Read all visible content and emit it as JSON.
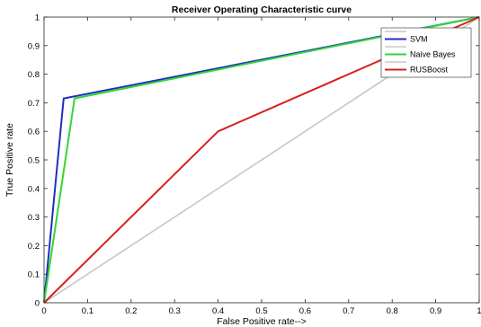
{
  "chart_data": {
    "type": "line",
    "title": "Receiver Operating Characteristic curve",
    "xlabel": "False Positive rate-->",
    "ylabel": "True Positive rate",
    "xlim": [
      0,
      1
    ],
    "ylim": [
      0,
      1
    ],
    "xticks": [
      "0",
      "0.1",
      "0.2",
      "0.3",
      "0.4",
      "0.5",
      "0.6",
      "0.7",
      "0.8",
      "0.9",
      "1"
    ],
    "yticks": [
      "0",
      "0.1",
      "0.2",
      "0.3",
      "0.4",
      "0.5",
      "0.6",
      "0.7",
      "0.8",
      "0.9",
      "1"
    ],
    "grid": false,
    "legend_position": "top-right",
    "series": [
      {
        "name": "",
        "color": "#c8c8c8",
        "x": [
          0,
          1
        ],
        "y": [
          0,
          1
        ]
      },
      {
        "name": "SVM",
        "color": "#1f2fbf",
        "x": [
          0,
          0.045,
          1
        ],
        "y": [
          0,
          0.715,
          1
        ]
      },
      {
        "name": "",
        "color": "#c8c8c8",
        "x": [
          0,
          1
        ],
        "y": [
          0,
          1
        ]
      },
      {
        "name": "Naive Bayes",
        "color": "#33d633",
        "x": [
          0,
          0.07,
          1
        ],
        "y": [
          0,
          0.715,
          1
        ]
      },
      {
        "name": "",
        "color": "#c8c8c8",
        "x": [
          0,
          1
        ],
        "y": [
          0,
          1
        ]
      },
      {
        "name": "RUSBoost",
        "color": "#d62020",
        "x": [
          0,
          0.4,
          1
        ],
        "y": [
          0,
          0.6,
          1
        ]
      }
    ]
  }
}
